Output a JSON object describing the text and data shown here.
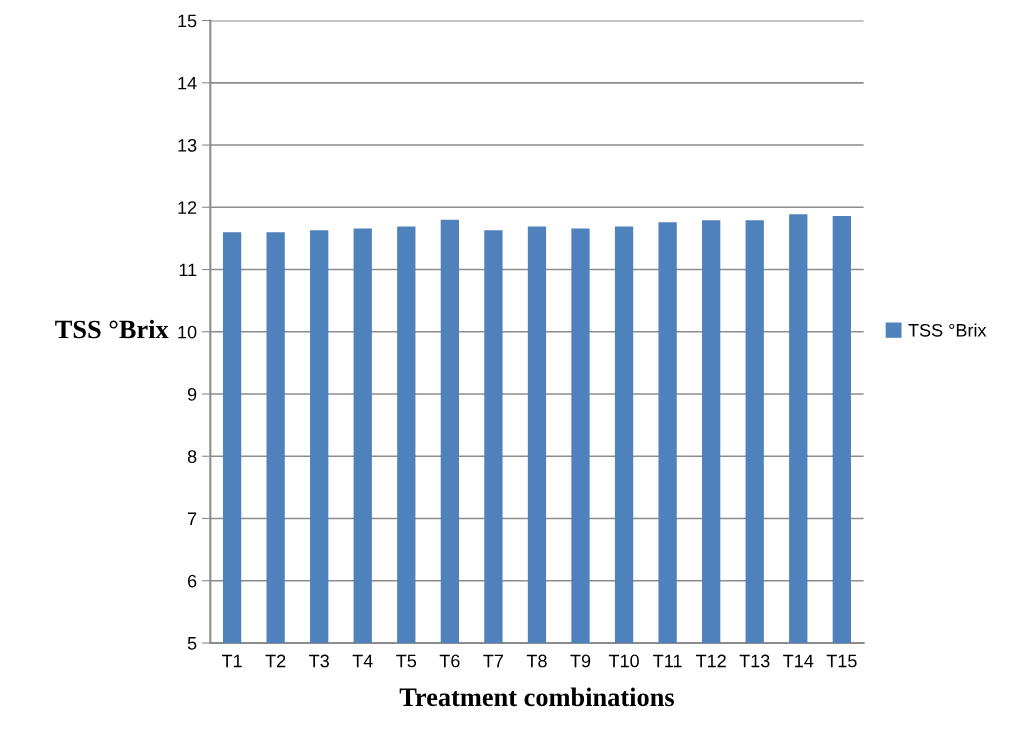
{
  "chart_data": {
    "type": "bar",
    "xlabel": "Treatment combinations",
    "ylabel": "TSS °Brix",
    "categories": [
      "T1",
      "T2",
      "T3",
      "T4",
      "T5",
      "T6",
      "T7",
      "T8",
      "T9",
      "T10",
      "T11",
      "T12",
      "T13",
      "T14",
      "T15"
    ],
    "series": [
      {
        "name": "TSS °Brix",
        "color": "#4f81bd",
        "values": [
          11.6,
          11.6,
          11.63,
          11.66,
          11.69,
          11.8,
          11.63,
          11.69,
          11.66,
          11.69,
          11.76,
          11.79,
          11.79,
          11.89,
          11.86
        ]
      }
    ],
    "ylim": [
      5,
      15
    ],
    "yticks": [
      5,
      6,
      7,
      8,
      9,
      10,
      11,
      12,
      13,
      14,
      15
    ],
    "grid": "y",
    "legend": "right"
  }
}
